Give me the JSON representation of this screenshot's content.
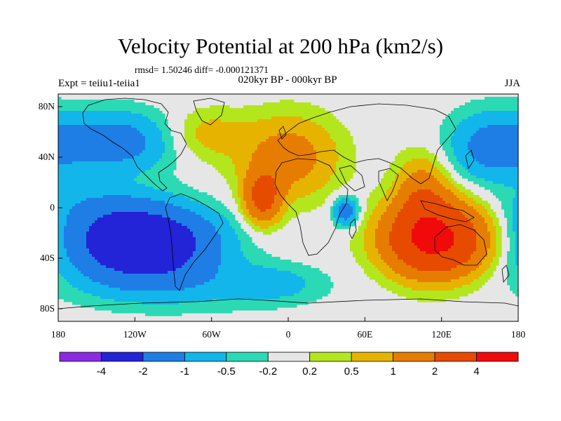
{
  "title": "Velocity Potential at 200 hPa (km2/s)",
  "stats": "rmsd= 1.50246 diff= -0.000121371",
  "experiment": "Expt = teiiu1-teiia1",
  "period": "020kyr BP - 000kyr BP",
  "season": "JJA",
  "y_ticks": [
    {
      "label": "80N",
      "lat": 80
    },
    {
      "label": "40N",
      "lat": 40
    },
    {
      "label": "0",
      "lat": 0
    },
    {
      "label": "40S",
      "lat": -40
    },
    {
      "label": "80S",
      "lat": -80
    }
  ],
  "x_ticks": [
    {
      "label": "180",
      "lon": -180
    },
    {
      "label": "120W",
      "lon": -120
    },
    {
      "label": "60W",
      "lon": -60
    },
    {
      "label": "0",
      "lon": 0
    },
    {
      "label": "60E",
      "lon": 60
    },
    {
      "label": "120E",
      "lon": 120
    },
    {
      "label": "180",
      "lon": 180
    }
  ],
  "colorbar": {
    "colors": [
      "#8a2be2",
      "#2323d8",
      "#1e7ee6",
      "#12b6ea",
      "#2bd9b4",
      "#e6e6e6",
      "#b4e61e",
      "#e6b400",
      "#e67d00",
      "#e64b00",
      "#f00a0a"
    ],
    "levels": [
      "-4",
      "-2",
      "-1",
      "-0.5",
      "-0.2",
      "0.2",
      "0.5",
      "1",
      "2",
      "4"
    ]
  },
  "field_blobs": [
    {
      "lon": 115,
      "lat": -25,
      "rx": 38,
      "ry": 28,
      "v": 4.6
    },
    {
      "lon": 105,
      "lat": 10,
      "rx": 20,
      "ry": 30,
      "v": 1.5
    },
    {
      "lon": -20,
      "lat": 8,
      "rx": 14,
      "ry": 20,
      "v": 2.5
    },
    {
      "lon": 0,
      "lat": 40,
      "rx": 38,
      "ry": 32,
      "v": 1.4
    },
    {
      "lon": -65,
      "lat": 58,
      "rx": 30,
      "ry": 20,
      "v": 0.7
    },
    {
      "lon": -135,
      "lat": 52,
      "rx": 45,
      "ry": 24,
      "v": -1.4
    },
    {
      "lon": 160,
      "lat": 48,
      "rx": 35,
      "ry": 28,
      "v": -1.3
    },
    {
      "lon": -115,
      "lat": -28,
      "rx": 55,
      "ry": 28,
      "v": -3.6
    },
    {
      "lon": -80,
      "lat": -62,
      "rx": 90,
      "ry": 20,
      "v": -0.55
    },
    {
      "lon": 45,
      "lat": -3,
      "rx": 10,
      "ry": 12,
      "v": -1.5
    },
    {
      "lon": -10,
      "lat": -60,
      "rx": 35,
      "ry": 14,
      "v": -0.5
    },
    {
      "lon": -150,
      "lat": 0,
      "rx": 45,
      "ry": 18,
      "v": -0.6
    }
  ]
}
